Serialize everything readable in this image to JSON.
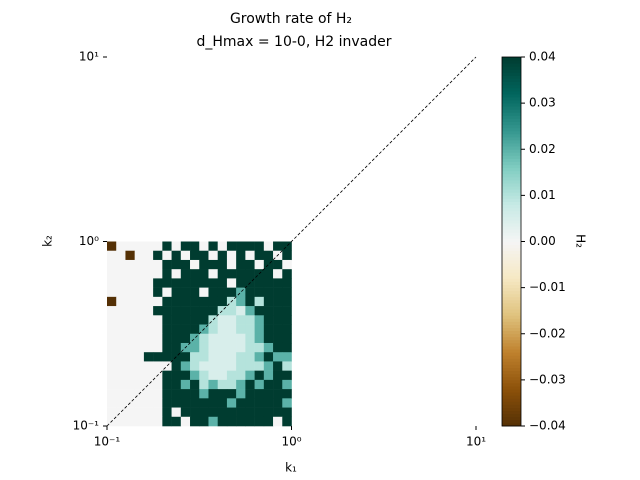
{
  "chart_data": {
    "type": "heatmap",
    "title": "Growth rate of H₂",
    "subtitle": "d_Hmax = 10-0, H2 invader",
    "x_label": "k₁",
    "y_label": "k₂",
    "colorbar_label": "H₂",
    "xscale": "log",
    "yscale": "log",
    "xlim": [
      0.1,
      10
    ],
    "ylim": [
      0.1,
      10
    ],
    "xticks": [
      {
        "value": 0.1,
        "label": "10⁻¹"
      },
      {
        "value": 1,
        "label": "10⁰"
      },
      {
        "value": 10,
        "label": "10¹"
      }
    ],
    "yticks": [
      {
        "value": 0.1,
        "label": "10⁻¹"
      },
      {
        "value": 1,
        "label": "10⁰"
      },
      {
        "value": 10,
        "label": "10¹"
      }
    ],
    "x_extent": [
      0.1,
      1
    ],
    "y_extent": [
      0.1,
      1
    ],
    "clim": [
      -0.04,
      0.04
    ],
    "cticks": [
      {
        "value": -0.04,
        "label": "−0.04"
      },
      {
        "value": -0.03,
        "label": "−0.03"
      },
      {
        "value": -0.02,
        "label": "−0.02"
      },
      {
        "value": -0.01,
        "label": "−0.01"
      },
      {
        "value": 0,
        "label": "0.00"
      },
      0.01,
      0.02,
      0.03,
      0.04
    ],
    "colormap": [
      "#543005",
      "#8c510a",
      "#bf812d",
      "#dfc27d",
      "#f6e8c3",
      "#f5f5f5",
      "#c7eae5",
      "#80cdc1",
      "#35978f",
      "#01665e",
      "#003c30"
    ],
    "z": [
      [
        -0.04,
        0,
        0,
        0,
        0,
        0,
        0.04,
        0,
        0.04,
        0.04,
        0,
        0.04,
        0,
        0.04,
        0.04,
        0.04,
        0.04,
        0,
        0.04,
        0.04
      ],
      [
        0,
        0,
        -0.04,
        0,
        0,
        0.04,
        0,
        0.04,
        0,
        0.04,
        0.04,
        0,
        0.04,
        0,
        0.04,
        0,
        0.04,
        0.04,
        0,
        0.04
      ],
      [
        0,
        0,
        0,
        0,
        0,
        0,
        0.04,
        0.04,
        0.04,
        0,
        0.04,
        0.04,
        0.04,
        0,
        0.04,
        0.04,
        0,
        0.04,
        0.04,
        0
      ],
      [
        0,
        0,
        0,
        0,
        0,
        0,
        0.04,
        0,
        0.04,
        0.04,
        0.04,
        0,
        0.04,
        0.04,
        0.04,
        0.04,
        0.04,
        0.04,
        0,
        0.04
      ],
      [
        0,
        0,
        0,
        0,
        0,
        0.04,
        0.04,
        0.04,
        0.04,
        0.04,
        0.04,
        0.04,
        0.04,
        0,
        0.04,
        0.04,
        0.04,
        0.04,
        0.04,
        0.04
      ],
      [
        0,
        0,
        0,
        0,
        0,
        0.04,
        0,
        0.04,
        0.04,
        0.04,
        0,
        0.04,
        0.04,
        0.04,
        0.02,
        0.04,
        0.04,
        0.04,
        0.04,
        0.04
      ],
      [
        -0.04,
        0,
        0,
        0,
        0,
        0,
        0.04,
        0.04,
        0.04,
        0.04,
        0.04,
        0.04,
        0.04,
        0.01,
        0.02,
        0.04,
        0.01,
        0.04,
        0.04,
        0.04
      ],
      [
        0,
        0,
        0,
        0,
        0,
        0.04,
        0.04,
        0.04,
        0.04,
        0.04,
        0.04,
        0.04,
        0.01,
        0.01,
        0.005,
        0.02,
        0.04,
        0.04,
        0.04,
        0.04
      ],
      [
        0,
        0,
        0,
        0,
        0,
        0,
        0.04,
        0.04,
        0.04,
        0.04,
        0.04,
        0.01,
        0.005,
        0.005,
        0.01,
        0.01,
        0.02,
        0.04,
        0.04,
        0.04
      ],
      [
        0,
        0,
        0,
        0,
        0,
        0,
        0.04,
        0.04,
        0.04,
        0.04,
        0.02,
        0.01,
        0.005,
        0.005,
        0.01,
        0.01,
        0.02,
        0.04,
        0.04,
        0.04
      ],
      [
        0,
        0,
        0,
        0,
        0,
        0,
        0.04,
        0.04,
        0.04,
        0.02,
        0.01,
        0.005,
        0.005,
        0.005,
        0.005,
        0.01,
        0.02,
        0.04,
        0.04,
        0.04
      ],
      [
        0,
        0,
        0,
        0,
        0,
        0,
        0.04,
        0.04,
        0.02,
        0.02,
        0.01,
        0.005,
        0.005,
        0.005,
        0.005,
        0.01,
        0.01,
        0.02,
        0.04,
        0.04
      ],
      [
        0,
        0,
        0,
        0,
        0.04,
        0.04,
        0.04,
        0.04,
        0.04,
        0.01,
        0.01,
        0.005,
        0.005,
        0.005,
        0.01,
        0.01,
        0.02,
        0.04,
        0.02,
        0.02
      ],
      [
        0,
        0,
        0,
        0,
        0,
        0,
        0,
        0.04,
        0.02,
        0.01,
        0.005,
        0.005,
        0.005,
        0.005,
        0.01,
        0.01,
        0.01,
        0.02,
        0.04,
        0.01
      ],
      [
        0,
        0,
        0,
        0,
        0,
        0,
        0.04,
        0.04,
        0.04,
        0.02,
        0.01,
        0.005,
        0.005,
        0.01,
        0.01,
        0.02,
        0.04,
        0.02,
        0.04,
        0.04
      ],
      [
        0,
        0,
        0,
        0,
        0,
        0,
        0.04,
        0.04,
        0.02,
        0.04,
        0.01,
        0.02,
        0.01,
        0.01,
        0.02,
        0.04,
        0.02,
        0.04,
        0.04,
        0.02
      ],
      [
        0,
        0,
        0,
        0,
        0,
        0,
        0.04,
        0.04,
        0.04,
        0.04,
        0.02,
        0.04,
        0.04,
        0.04,
        0.02,
        0.04,
        0.04,
        0.04,
        0.04,
        0.04
      ],
      [
        0,
        0,
        0,
        0,
        0,
        0,
        0.04,
        0.04,
        0.04,
        0.04,
        0.04,
        0.04,
        0.04,
        0.02,
        0.04,
        0.04,
        0.04,
        0.04,
        0.04,
        0.02
      ],
      [
        0,
        0,
        0,
        0,
        0,
        0,
        0.04,
        0,
        0.04,
        0.04,
        0.04,
        0.04,
        0.04,
        0.04,
        0.04,
        0.04,
        0.04,
        0.04,
        0.04,
        0.04
      ],
      [
        0,
        0,
        0,
        0,
        0,
        0,
        0.04,
        0.04,
        0,
        0.04,
        0.04,
        0.02,
        0.04,
        0.04,
        0.04,
        0.04,
        0.04,
        0.04,
        0,
        0.04
      ]
    ]
  }
}
